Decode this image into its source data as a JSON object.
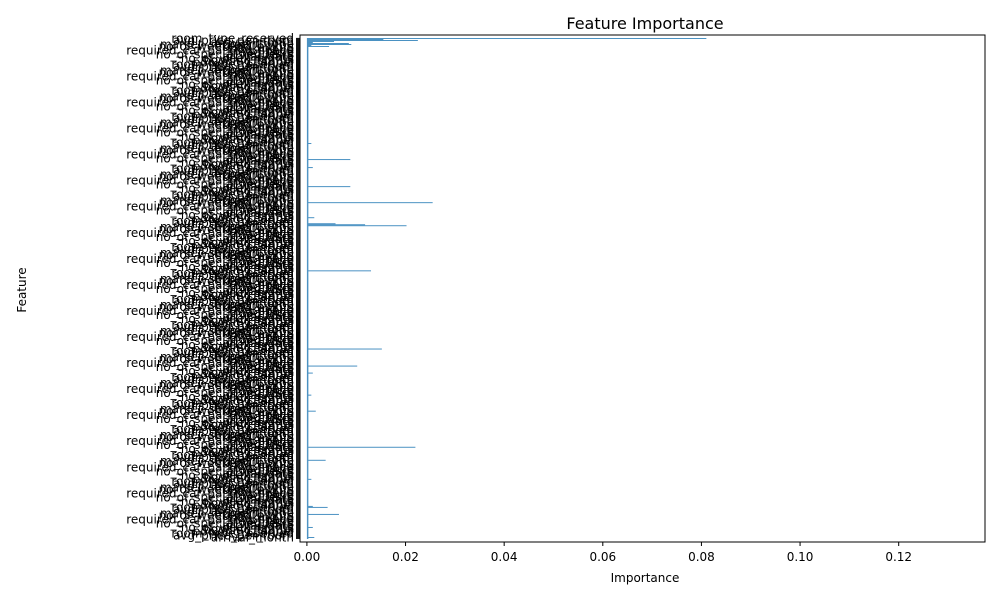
{
  "chart_data": {
    "type": "bar",
    "orientation": "horizontal",
    "title": "Feature Importance",
    "xlabel": "Importance",
    "ylabel": "Feature",
    "xlim": [
      -0.0014,
      0.1375
    ],
    "xticks": [
      "0.00",
      "0.02",
      "0.04",
      "0.06",
      "0.08",
      "0.10",
      "0.12"
    ],
    "xtick_values": [
      0.0,
      0.02,
      0.04,
      0.06,
      0.08,
      0.1,
      0.12
    ],
    "grid": false,
    "legend": "none",
    "bar_color": "#1f77b4",
    "category_count": 500,
    "visible_category_labels": [
      "room_type_reserved",
      "lead_time",
      "avg_price_per_room",
      "no_of_special_requests",
      "arrival_month",
      "arrival_date",
      "market_segment_type",
      "no_of_week_nights",
      "no_of_weekend_nights",
      "booking_status",
      "booking_id",
      "booking_channel",
      "required_car_parking_space"
    ],
    "values_by_index": {
      "0": 0.081,
      "1": 0.0155,
      "2": 0.0225,
      "3": 0.0055,
      "4": 0.0012,
      "5": 0.0085,
      "6": 0.009,
      "7": 0.0009,
      "8": 0.0045,
      "105": 0.0009,
      "121": 0.0088,
      "129": 0.0012,
      "148": 0.0088,
      "164": 0.0255,
      "179": 0.0015,
      "185": 0.0058,
      "186": 0.0118,
      "187": 0.0202,
      "232": 0.013,
      "310": 0.0152,
      "327": 0.0102,
      "334": 0.0012,
      "356": 0.0009,
      "372": 0.0018,
      "408": 0.022,
      "421": 0.0038,
      "440": 0.0009,
      "467": 0.0012,
      "468": 0.0042,
      "475": 0.0065,
      "488": 0.0012,
      "498": 0.0015
    },
    "base_value": 0.0003
  }
}
